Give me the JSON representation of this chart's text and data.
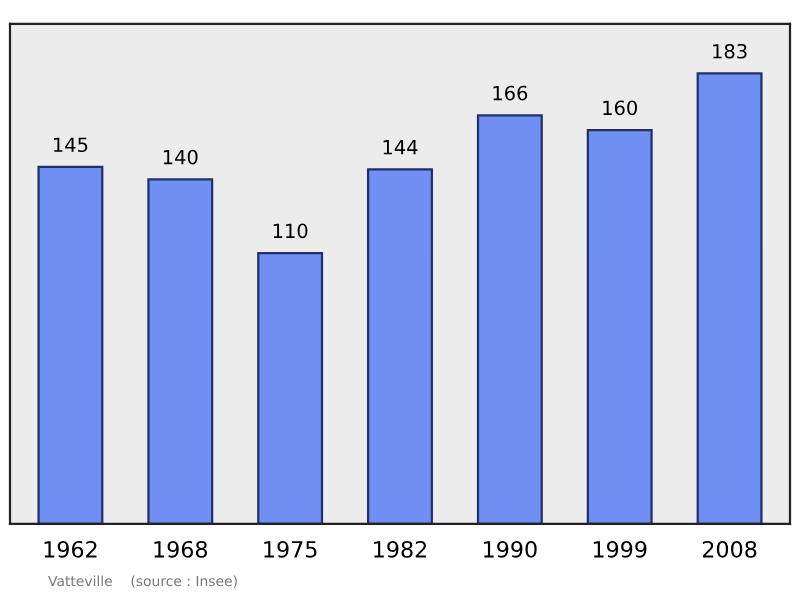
{
  "chart_data": {
    "type": "bar",
    "categories": [
      "1962",
      "1968",
      "1975",
      "1982",
      "1990",
      "1999",
      "2008"
    ],
    "values": [
      145,
      140,
      110,
      144,
      166,
      160,
      183
    ],
    "color": "#6f8ff2",
    "data_labels": true,
    "annotations": [
      "Vatteville    (source : Insee)"
    ]
  }
}
